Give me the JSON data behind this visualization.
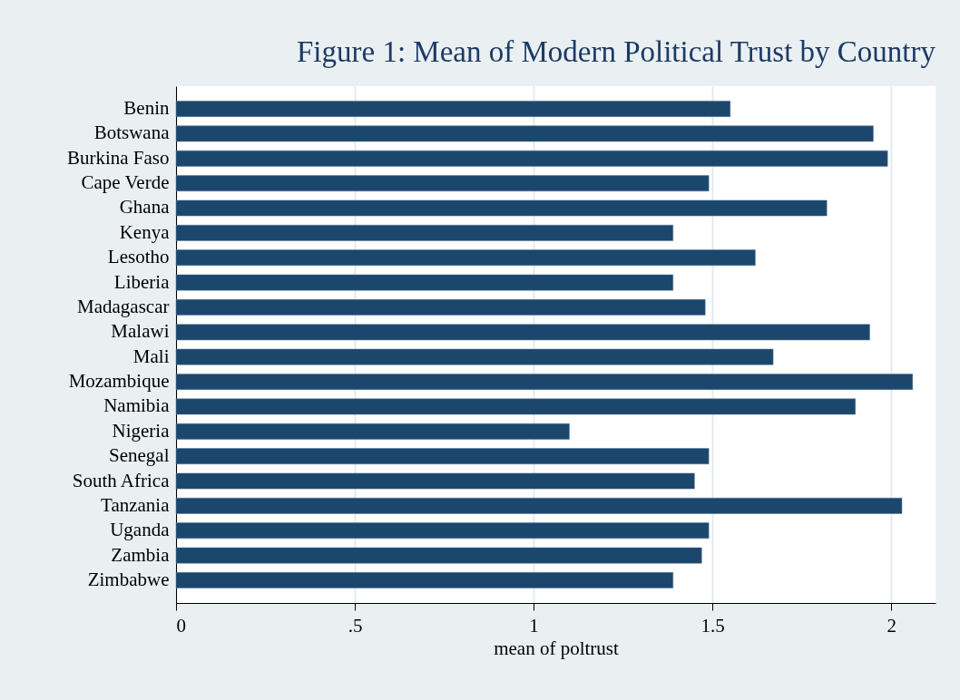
{
  "chart_data": {
    "type": "bar",
    "orientation": "horizontal",
    "title": "Figure 1: Mean of Modern Political Trust by Country",
    "xlabel": "mean of poltrust",
    "categories": [
      "Benin",
      "Botswana",
      "Burkina Faso",
      "Cape Verde",
      "Ghana",
      "Kenya",
      "Lesotho",
      "Liberia",
      "Madagascar",
      "Malawi",
      "Mali",
      "Mozambique",
      "Namibia",
      "Nigeria",
      "Senegal",
      "South Africa",
      "Tanzania",
      "Uganda",
      "Zambia",
      "Zimbabwe"
    ],
    "values": [
      1.55,
      1.95,
      1.99,
      1.49,
      1.82,
      1.39,
      1.62,
      1.39,
      1.48,
      1.94,
      1.67,
      2.06,
      1.9,
      1.1,
      1.49,
      1.45,
      2.03,
      1.49,
      1.47,
      1.39
    ],
    "color": "#1c476d",
    "xlim": [
      0,
      2.124
    ],
    "xticks": [
      0,
      {
        "value": 0.5,
        "label": ".5"
      },
      1,
      1.5,
      2
    ],
    "grid": "x"
  }
}
